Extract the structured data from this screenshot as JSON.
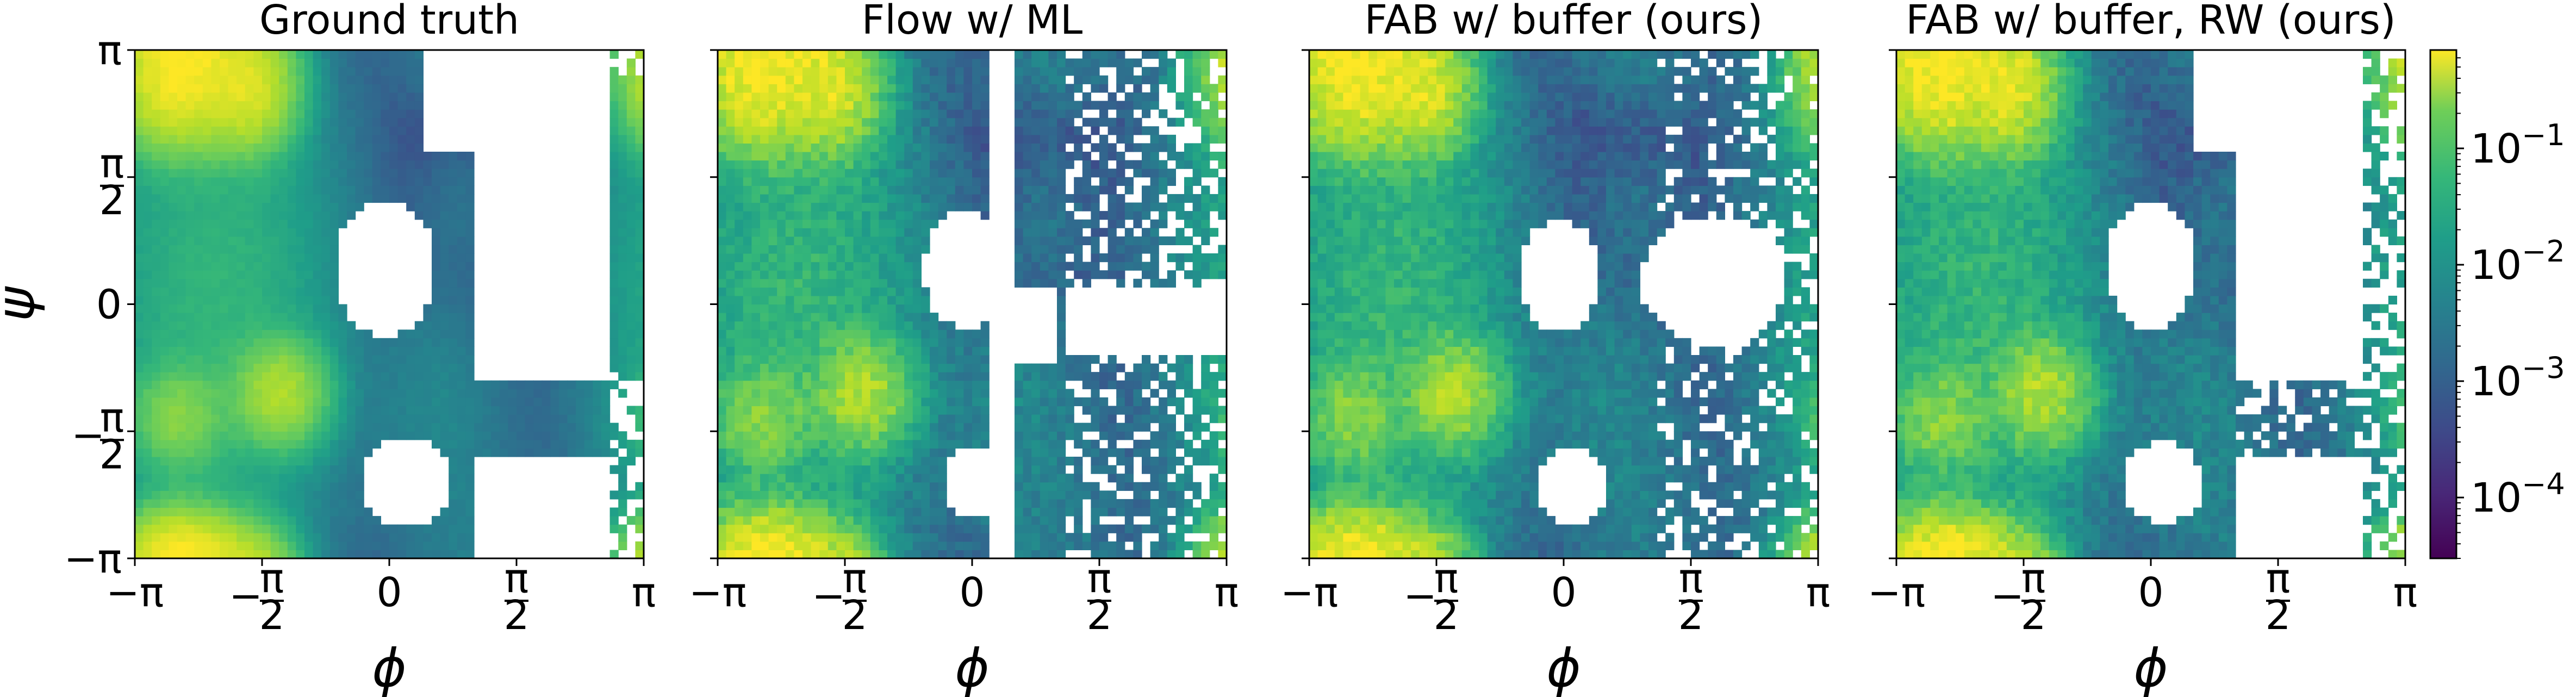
{
  "chart_data": [
    {
      "type": "heatmap",
      "title": "Ground truth",
      "xlabel": "ϕ",
      "ylabel": "ψ",
      "xlim": [
        "−π",
        "π"
      ],
      "ylim": [
        "−π",
        "π"
      ],
      "x_ticks": [
        "−π",
        "−π/2",
        "0",
        "π/2",
        "π"
      ],
      "y_ticks": [
        "−π",
        "−π/2",
        "0",
        "π/2",
        "π"
      ],
      "color_scale": "log",
      "colormap": "viridis",
      "empty_bins": "white",
      "modes": [
        {
          "phi": -2.6,
          "psi": 2.8,
          "density": 0.6
        },
        {
          "phi": -1.8,
          "psi": 2.7,
          "density": 0.4
        },
        {
          "phi": -1.4,
          "psi": -1.1,
          "density": 0.2
        },
        {
          "phi": -2.6,
          "psi": -1.4,
          "density": 0.1
        },
        {
          "phi": -2.5,
          "psi": -3.0,
          "density": 0.3
        }
      ]
    },
    {
      "type": "heatmap",
      "title": "Flow w/ ML",
      "xlabel": "ϕ",
      "xlim": [
        "−π",
        "π"
      ],
      "ylim": [
        "−π",
        "π"
      ],
      "x_ticks": [
        "−π",
        "−π/2",
        "0",
        "π/2",
        "π"
      ],
      "color_scale": "log",
      "colormap": "viridis",
      "empty_bins": "white"
    },
    {
      "type": "heatmap",
      "title": "FAB w/ buffer (ours)",
      "xlabel": "ϕ",
      "xlim": [
        "−π",
        "π"
      ],
      "ylim": [
        "−π",
        "π"
      ],
      "x_ticks": [
        "−π",
        "−π/2",
        "0",
        "π/2",
        "π"
      ],
      "color_scale": "log",
      "colormap": "viridis",
      "empty_bins": "white"
    },
    {
      "type": "heatmap",
      "title": "FAB w/ buffer, RW (ours)",
      "xlabel": "ϕ",
      "xlim": [
        "−π",
        "π"
      ],
      "ylim": [
        "−π",
        "π"
      ],
      "x_ticks": [
        "−π",
        "−π/2",
        "0",
        "π/2",
        "π"
      ],
      "color_scale": "log",
      "colormap": "viridis",
      "empty_bins": "white"
    }
  ],
  "colorbar": {
    "scale": "log",
    "range": [
      3e-05,
      0.7
    ],
    "ticks": [
      {
        "value": 0.1,
        "base": "10",
        "exp": "−1"
      },
      {
        "value": 0.01,
        "base": "10",
        "exp": "−2"
      },
      {
        "value": 0.001,
        "base": "10",
        "exp": "−3"
      },
      {
        "value": 0.0001,
        "base": "10",
        "exp": "−4"
      }
    ]
  }
}
